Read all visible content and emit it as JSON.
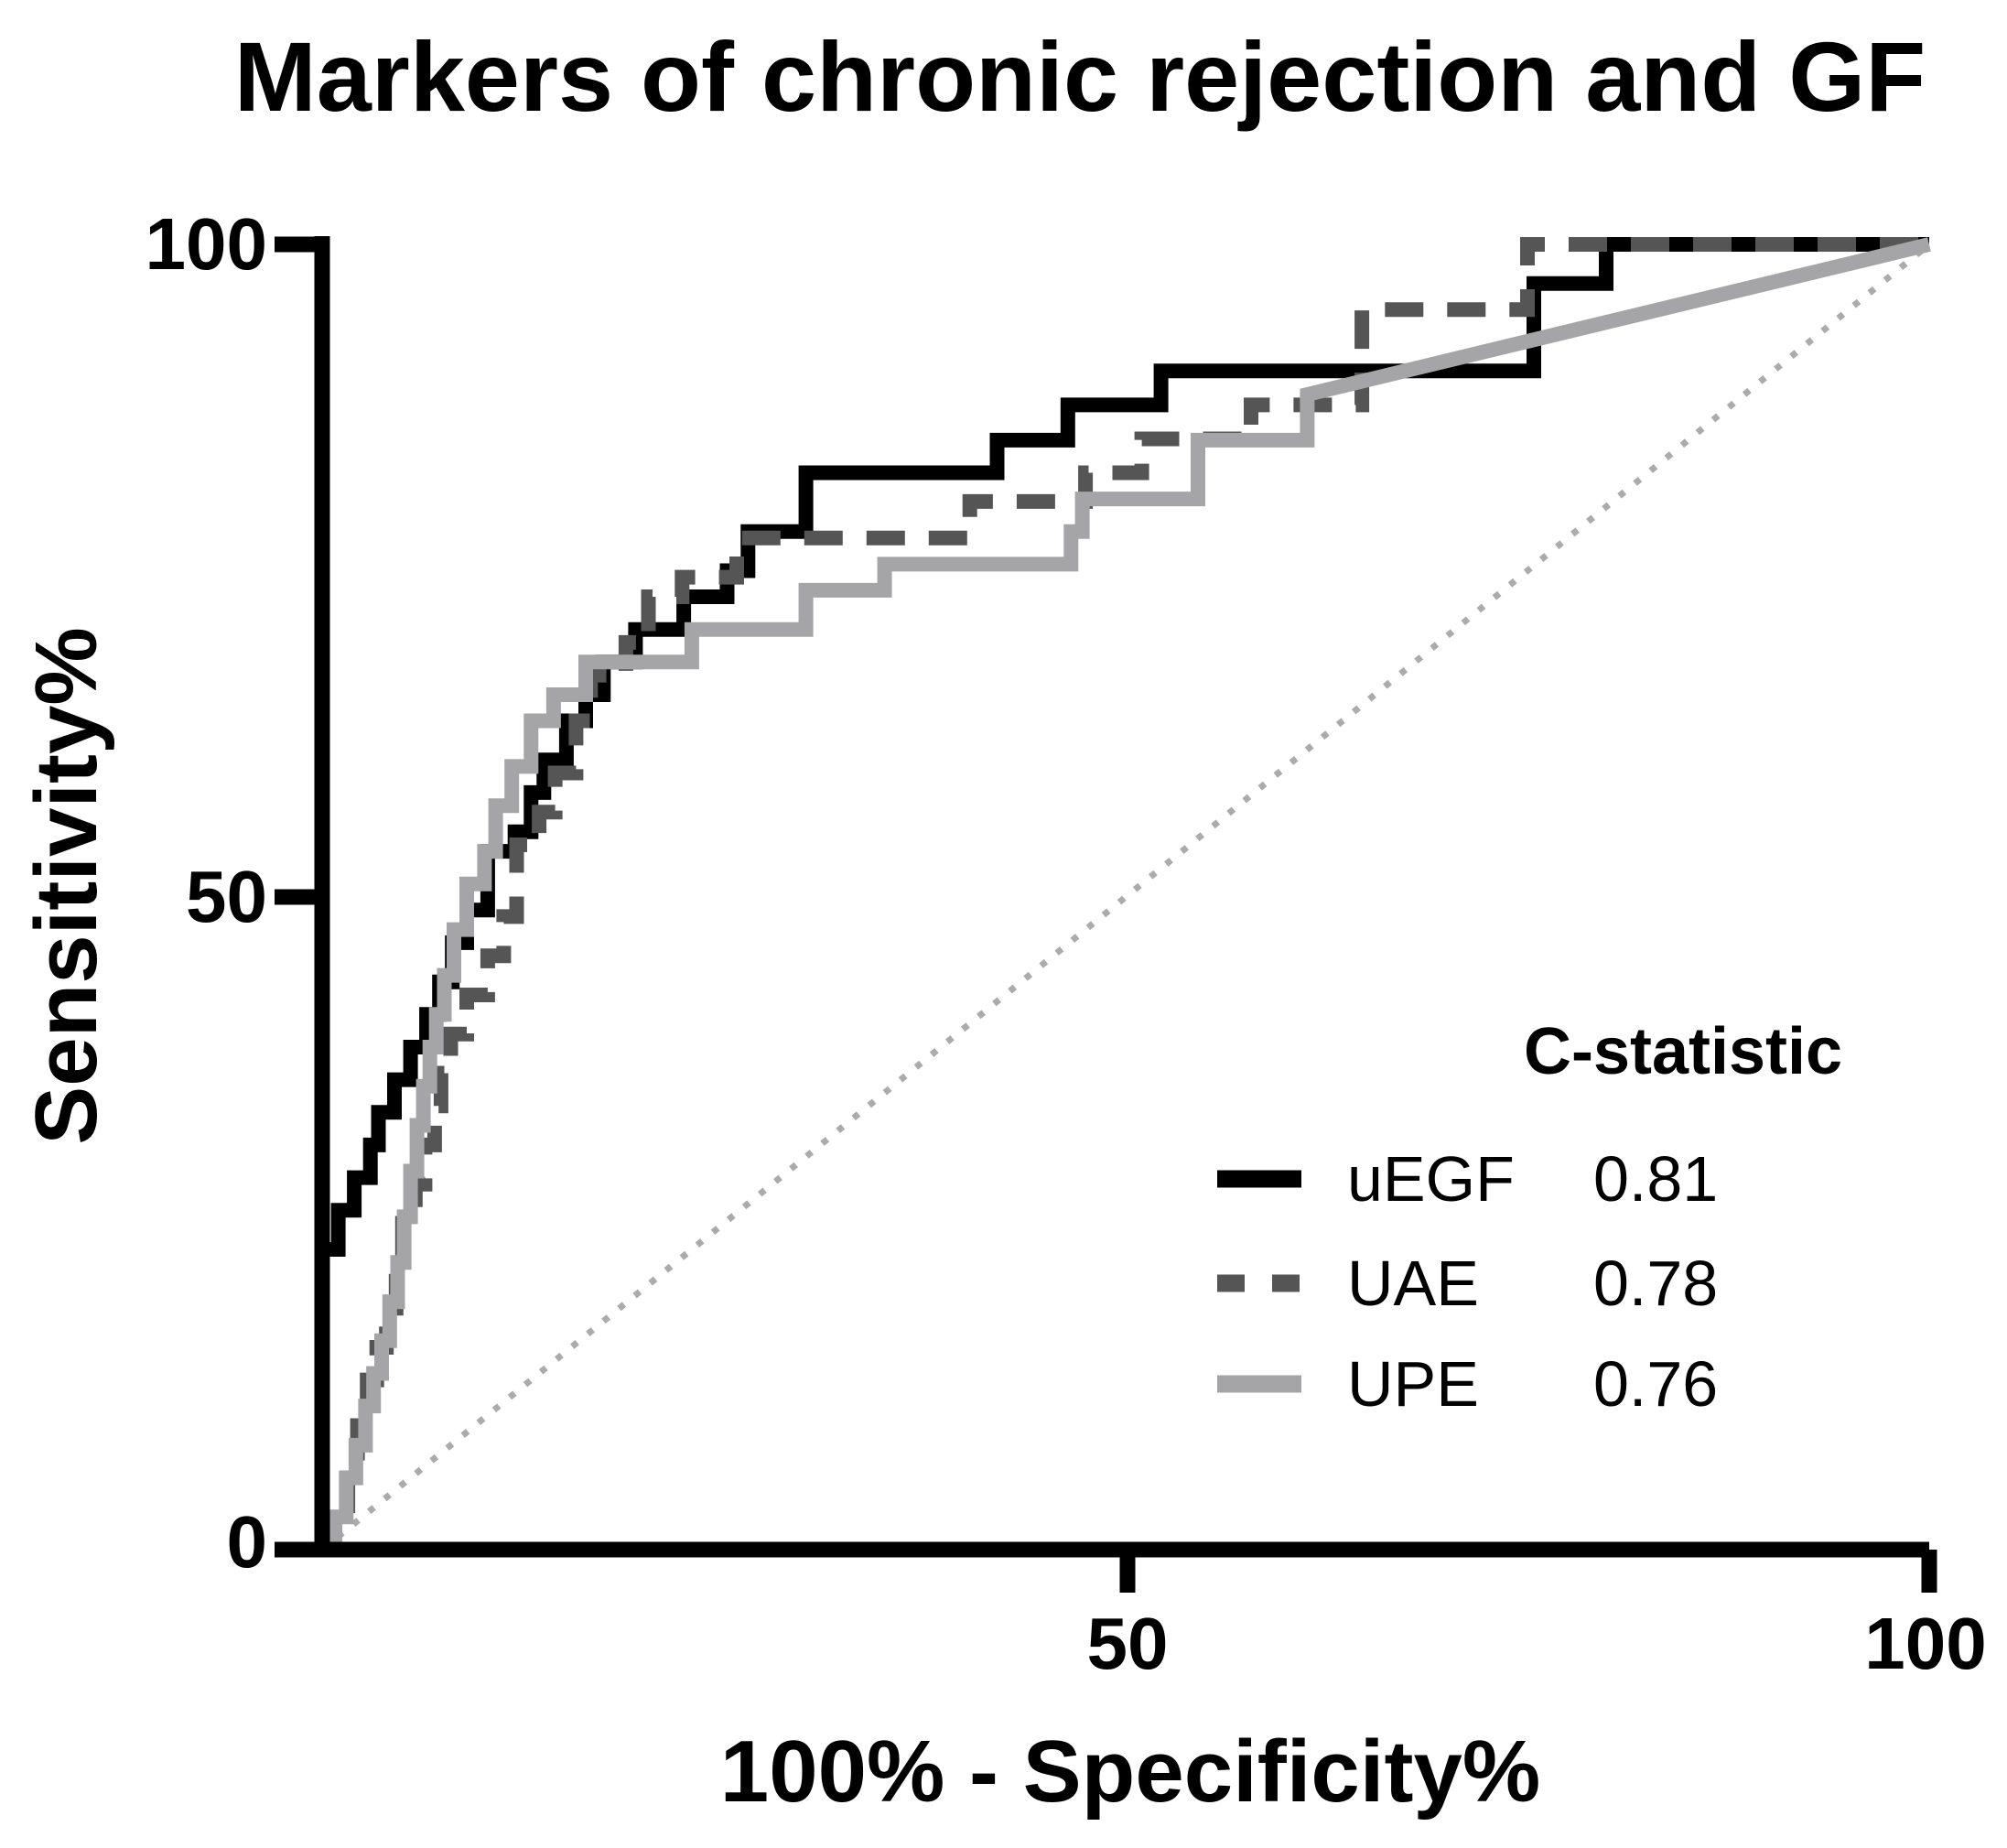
{
  "title": "Markers of chronic rejection and GF",
  "axes": {
    "x_label": "100% - Specificity%",
    "y_label": "Sensitivity%",
    "x_tick_labels": [
      "50",
      "100"
    ],
    "y_tick_labels": [
      "100",
      "50",
      "0"
    ]
  },
  "legend": {
    "header": "C-statistic",
    "items": [
      {
        "label": "uEGF",
        "value": "0.81"
      },
      {
        "label": "UAE",
        "value": "0.78"
      },
      {
        "label": "UPE",
        "value": "0.76"
      }
    ]
  },
  "colors": {
    "axis": "#000000",
    "uegf": "#000000",
    "uae": "#555555",
    "upe": "#a5a5a8",
    "reference": "#ababab"
  },
  "chart_data": {
    "type": "line",
    "subtype": "roc-staircase",
    "title": "Markers of chronic rejection and GF",
    "xlabel": "100% - Specificity%",
    "ylabel": "Sensitivity%",
    "xlim": [
      0,
      100
    ],
    "ylim": [
      0,
      100
    ],
    "x_ticks": [
      50,
      100
    ],
    "y_ticks": [
      0,
      50,
      100
    ],
    "grid": false,
    "legend_position": "lower right",
    "reference_line": {
      "from": [
        0,
        0
      ],
      "to": [
        100,
        100
      ],
      "style": "dotted",
      "color": "#ababab"
    },
    "series": [
      {
        "name": "uEGF",
        "c_statistic": 0.81,
        "color": "#000000",
        "line_style": "solid",
        "points": [
          [
            0,
            0
          ],
          [
            0,
            23
          ],
          [
            1,
            23
          ],
          [
            1,
            26
          ],
          [
            2,
            26
          ],
          [
            2,
            28.5
          ],
          [
            3,
            28.5
          ],
          [
            3,
            31
          ],
          [
            3.5,
            31
          ],
          [
            3.5,
            33.5
          ],
          [
            4.5,
            33.5
          ],
          [
            4.5,
            36
          ],
          [
            5.5,
            36
          ],
          [
            5.5,
            38.5
          ],
          [
            6.5,
            38.5
          ],
          [
            6.5,
            41
          ],
          [
            7.3,
            41
          ],
          [
            7.3,
            43.5
          ],
          [
            8.1,
            43.5
          ],
          [
            8.1,
            46.5
          ],
          [
            9,
            46.5
          ],
          [
            9,
            49
          ],
          [
            10.3,
            49
          ],
          [
            10.3,
            53.5
          ],
          [
            12,
            53.5
          ],
          [
            12,
            55
          ],
          [
            13,
            55
          ],
          [
            13,
            58
          ],
          [
            13.8,
            58
          ],
          [
            13.8,
            60.5
          ],
          [
            15.2,
            60.5
          ],
          [
            15.2,
            63.5
          ],
          [
            16.4,
            63.5
          ],
          [
            16.4,
            65.5
          ],
          [
            17.5,
            65.5
          ],
          [
            17.5,
            68
          ],
          [
            19.5,
            68
          ],
          [
            19.5,
            70.5
          ],
          [
            22.5,
            70.5
          ],
          [
            22.5,
            73
          ],
          [
            25.2,
            73
          ],
          [
            25.2,
            75
          ],
          [
            26.5,
            75
          ],
          [
            26.5,
            78
          ],
          [
            30.1,
            78
          ],
          [
            30.1,
            82.5
          ],
          [
            42,
            82.5
          ],
          [
            42,
            85
          ],
          [
            46.4,
            85
          ],
          [
            46.4,
            87.7
          ],
          [
            52.2,
            87.7
          ],
          [
            52.2,
            90.3
          ],
          [
            75.4,
            90.3
          ],
          [
            75.4,
            97
          ],
          [
            79.9,
            97
          ],
          [
            79.9,
            100
          ],
          [
            100,
            100
          ]
        ]
      },
      {
        "name": "UAE",
        "c_statistic": 0.78,
        "color": "#555555",
        "line_style": "dashed",
        "points": [
          [
            0,
            0
          ],
          [
            0,
            2.5
          ],
          [
            1.6,
            2.5
          ],
          [
            1.6,
            5.5
          ],
          [
            2.2,
            5.5
          ],
          [
            2.2,
            9.5
          ],
          [
            2.8,
            9.5
          ],
          [
            2.8,
            13
          ],
          [
            3.4,
            13
          ],
          [
            3.4,
            15.5
          ],
          [
            4,
            15.5
          ],
          [
            4,
            18.5
          ],
          [
            4.6,
            18.5
          ],
          [
            4.6,
            22
          ],
          [
            5,
            22
          ],
          [
            5,
            25
          ],
          [
            5.8,
            25
          ],
          [
            5.8,
            28
          ],
          [
            6.4,
            28
          ],
          [
            6.4,
            31
          ],
          [
            7,
            31
          ],
          [
            7,
            34
          ],
          [
            7.4,
            34
          ],
          [
            7.4,
            36.5
          ],
          [
            8,
            36.5
          ],
          [
            8,
            39.5
          ],
          [
            9,
            39.5
          ],
          [
            9,
            42.5
          ],
          [
            10.3,
            42.5
          ],
          [
            10.3,
            45.5
          ],
          [
            11.3,
            45.5
          ],
          [
            11.3,
            48.5
          ],
          [
            12.1,
            48.5
          ],
          [
            12.1,
            54
          ],
          [
            13.5,
            54
          ],
          [
            13.5,
            56.5
          ],
          [
            14.5,
            56.5
          ],
          [
            14.5,
            59.5
          ],
          [
            15.8,
            59.5
          ],
          [
            15.8,
            63.5
          ],
          [
            16.7,
            63.5
          ],
          [
            16.7,
            67
          ],
          [
            18.9,
            67
          ],
          [
            18.9,
            69.5
          ],
          [
            20.3,
            69.5
          ],
          [
            20.3,
            73
          ],
          [
            22.4,
            73
          ],
          [
            22.4,
            74.5
          ],
          [
            25.8,
            74.5
          ],
          [
            25.8,
            77.5
          ],
          [
            40.3,
            77.5
          ],
          [
            40.3,
            80.3
          ],
          [
            47.5,
            80.3
          ],
          [
            47.5,
            82.5
          ],
          [
            51,
            82.5
          ],
          [
            51,
            85.1
          ],
          [
            57.8,
            85.1
          ],
          [
            57.8,
            87.7
          ],
          [
            64.7,
            87.7
          ],
          [
            64.7,
            95
          ],
          [
            75,
            95
          ],
          [
            75,
            100
          ],
          [
            100,
            100
          ]
        ]
      },
      {
        "name": "UPE",
        "c_statistic": 0.76,
        "color": "#a5a5a8",
        "line_style": "solid",
        "points": [
          [
            0,
            0
          ],
          [
            0.8,
            0
          ],
          [
            0.8,
            2.5
          ],
          [
            1.5,
            2.5
          ],
          [
            1.5,
            5.5
          ],
          [
            2.1,
            5.5
          ],
          [
            2.1,
            8
          ],
          [
            2.7,
            8
          ],
          [
            2.7,
            11
          ],
          [
            3.2,
            11
          ],
          [
            3.2,
            13.5
          ],
          [
            3.7,
            13.5
          ],
          [
            3.7,
            16
          ],
          [
            4.2,
            16
          ],
          [
            4.2,
            19
          ],
          [
            4.7,
            19
          ],
          [
            4.7,
            22
          ],
          [
            5.1,
            22
          ],
          [
            5.1,
            25.5
          ],
          [
            5.5,
            25.5
          ],
          [
            5.5,
            29
          ],
          [
            5.9,
            29
          ],
          [
            5.9,
            32.5
          ],
          [
            6.3,
            32.5
          ],
          [
            6.3,
            35.5
          ],
          [
            6.7,
            35.5
          ],
          [
            6.7,
            38.5
          ],
          [
            7.1,
            38.5
          ],
          [
            7.1,
            41
          ],
          [
            7.6,
            41
          ],
          [
            7.6,
            44
          ],
          [
            8.2,
            44
          ],
          [
            8.2,
            47.5
          ],
          [
            9,
            47.5
          ],
          [
            9,
            51
          ],
          [
            10.1,
            51
          ],
          [
            10.1,
            53.5
          ],
          [
            10.8,
            53.5
          ],
          [
            10.8,
            57
          ],
          [
            11.8,
            57
          ],
          [
            11.8,
            60
          ],
          [
            13,
            60
          ],
          [
            13,
            63.5
          ],
          [
            14.4,
            63.5
          ],
          [
            14.4,
            65.5
          ],
          [
            16.4,
            65.5
          ],
          [
            16.4,
            68
          ],
          [
            23,
            68
          ],
          [
            23,
            70.5
          ],
          [
            30.1,
            70.5
          ],
          [
            30.1,
            73.5
          ],
          [
            35,
            73.5
          ],
          [
            35,
            75.5
          ],
          [
            46.6,
            75.5
          ],
          [
            46.6,
            78
          ],
          [
            47.3,
            78
          ],
          [
            47.3,
            80.5
          ],
          [
            54.5,
            80.5
          ],
          [
            54.5,
            85
          ],
          [
            61.3,
            85
          ],
          [
            61.3,
            88.5
          ],
          [
            100,
            100
          ]
        ]
      }
    ]
  }
}
